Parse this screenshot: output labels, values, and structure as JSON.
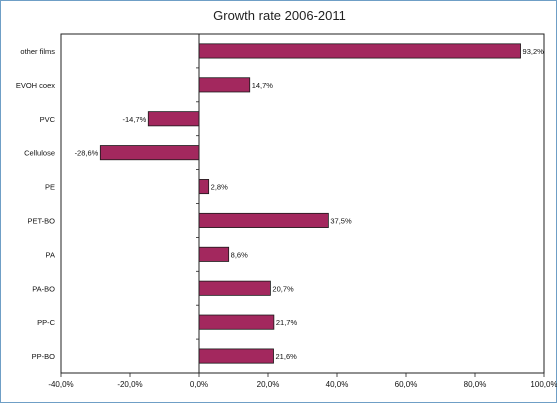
{
  "chart_data": {
    "type": "bar",
    "orientation": "horizontal",
    "title": "Growth rate 2006-2011",
    "categories": [
      "other films",
      "EVOH coex",
      "PVC",
      "Cellulose",
      "PE",
      "PET-BO",
      "PA",
      "PA-BO",
      "PP-C",
      "PP-BO"
    ],
    "values": [
      93.2,
      14.7,
      -14.7,
      -28.6,
      2.8,
      37.5,
      8.6,
      20.7,
      21.7,
      21.6
    ],
    "value_labels": [
      "93,2%",
      "14,7%",
      "-14,7%",
      "-28,6%",
      "2,8%",
      "37,5%",
      "8,6%",
      "20,7%",
      "21,7%",
      "21,6%"
    ],
    "xlim": [
      -40,
      100
    ],
    "xticks": [
      -40,
      -20,
      0,
      20,
      40,
      60,
      80,
      100
    ],
    "xtick_labels": [
      "-40,0%",
      "-20,0%",
      "0,0%",
      "20,0%",
      "40,0%",
      "60,0%",
      "80,0%",
      "100,0%"
    ],
    "xlabel": "",
    "ylabel": "",
    "grid": false,
    "legend": "none",
    "bar_color": "#a3285e",
    "bar_edge_color": "#1a1a1a"
  }
}
